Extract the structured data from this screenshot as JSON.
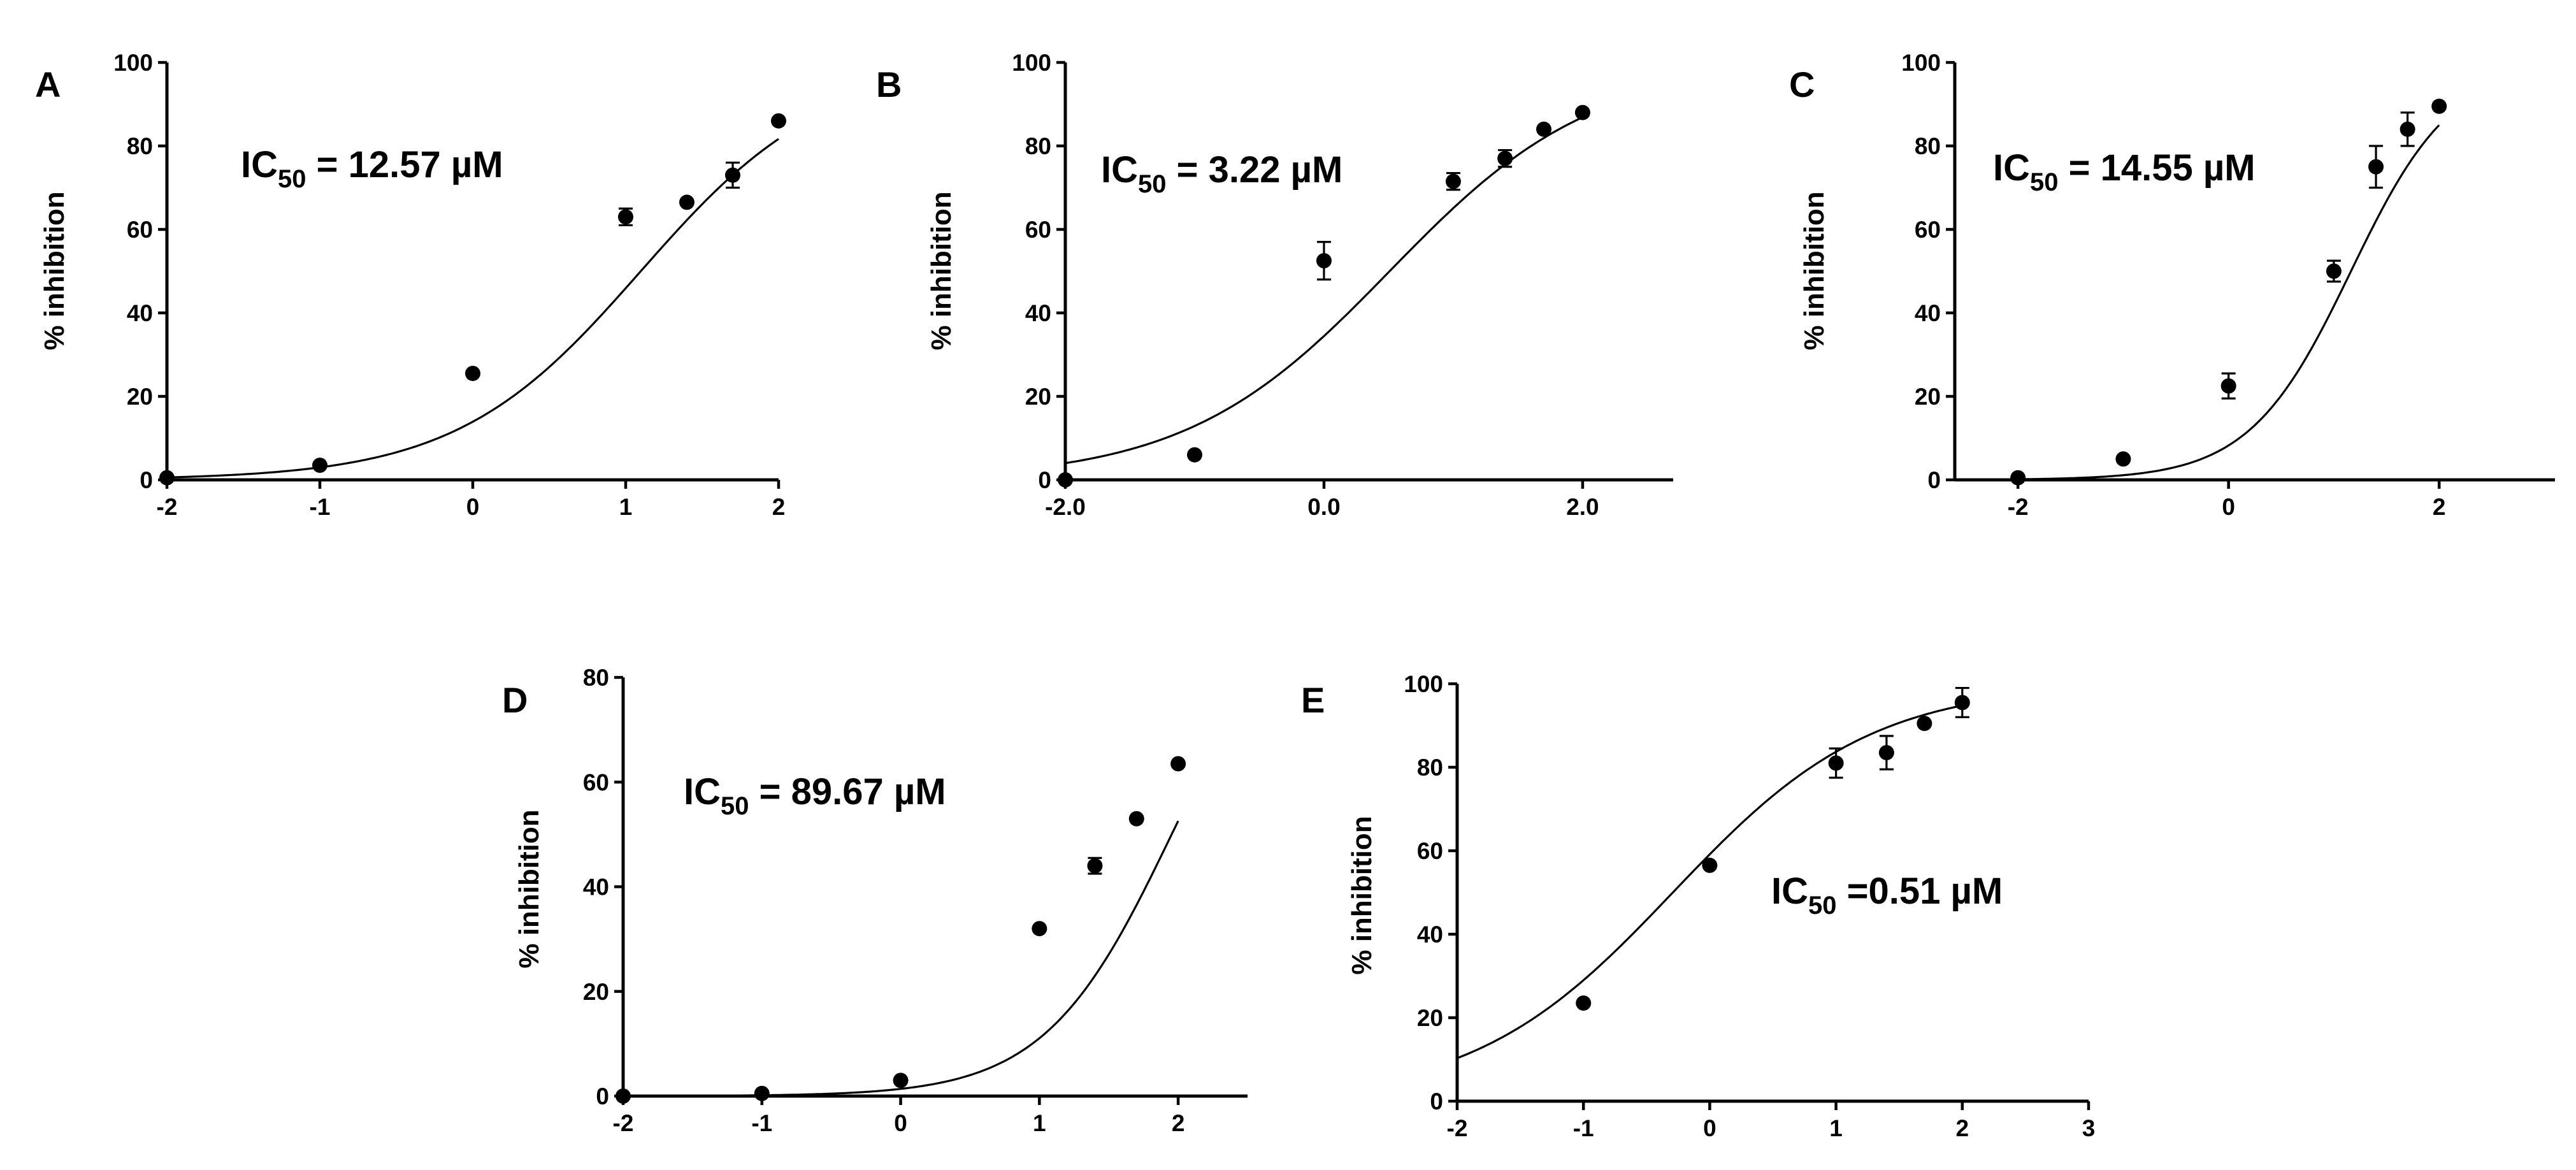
{
  "figure": {
    "panels": [
      "A",
      "B",
      "C",
      "D",
      "E"
    ]
  },
  "chart_data": [
    {
      "panel": "A",
      "type": "scatter",
      "title": "",
      "annotation": {
        "prefix": "IC",
        "sub": "50",
        "suffix": " = 12.57 µM"
      },
      "xlabel": "",
      "ylabel": "% inhibition",
      "xlim": [
        -2,
        2
      ],
      "ylim": [
        0,
        100
      ],
      "xticks": [
        -2,
        -1,
        0,
        1,
        2
      ],
      "xtick_labels": [
        "-2",
        "-1",
        "0",
        "1",
        "2"
      ],
      "yticks": [
        0,
        20,
        40,
        60,
        80,
        100
      ],
      "ytick_labels": [
        "0",
        "20",
        "40",
        "60",
        "80",
        "100"
      ],
      "points": [
        {
          "x": -2,
          "y": 0.5,
          "err": 0
        },
        {
          "x": -1,
          "y": 3.5,
          "err": 0
        },
        {
          "x": 0,
          "y": 25.5,
          "err": 0
        },
        {
          "x": 1,
          "y": 63,
          "err": 2
        },
        {
          "x": 1.4,
          "y": 66.5,
          "err": 0
        },
        {
          "x": 1.7,
          "y": 73,
          "err": 3
        },
        {
          "x": 2,
          "y": 86,
          "err": 0
        }
      ],
      "fit": {
        "model": "logistic",
        "bottom": 0,
        "top": 100,
        "logIC50": 1.099,
        "hill": 0.72
      }
    },
    {
      "panel": "B",
      "type": "scatter",
      "title": "",
      "annotation": {
        "prefix": "IC",
        "sub": "50",
        "suffix": " = 3.22 µM"
      },
      "xlabel": "",
      "ylabel": "% inhibition",
      "xlim": [
        -2,
        2.7
      ],
      "ylim": [
        0,
        100
      ],
      "xticks": [
        -2,
        0,
        2
      ],
      "xtick_labels": [
        "-2.0",
        "0.0",
        "2.0"
      ],
      "yticks": [
        0,
        20,
        40,
        60,
        80,
        100
      ],
      "ytick_labels": [
        "0",
        "20",
        "40",
        "60",
        "80",
        "100"
      ],
      "points": [
        {
          "x": -2,
          "y": 0,
          "err": 0
        },
        {
          "x": -1,
          "y": 6,
          "err": 0
        },
        {
          "x": 0,
          "y": 52.5,
          "err": 4.5
        },
        {
          "x": 1,
          "y": 71.5,
          "err": 2
        },
        {
          "x": 1.4,
          "y": 77,
          "err": 2
        },
        {
          "x": 1.7,
          "y": 84,
          "err": 0
        },
        {
          "x": 2,
          "y": 88,
          "err": 0
        }
      ],
      "fit": {
        "model": "logistic",
        "bottom": 0,
        "top": 100,
        "logIC50": 0.508,
        "hill": 0.55
      }
    },
    {
      "panel": "C",
      "type": "scatter",
      "title": "",
      "annotation": {
        "prefix": "IC",
        "sub": "50",
        "suffix": " = 14.55 µM"
      },
      "xlabel": "",
      "ylabel": "% inhibition",
      "xlim": [
        -2.6,
        3.1
      ],
      "ylim": [
        0,
        100
      ],
      "xticks": [
        -2,
        0,
        2
      ],
      "xtick_labels": [
        "-2",
        "0",
        "2"
      ],
      "yticks": [
        0,
        20,
        40,
        60,
        80,
        100
      ],
      "ytick_labels": [
        "0",
        "20",
        "40",
        "60",
        "80",
        "100"
      ],
      "points": [
        {
          "x": -2,
          "y": 0.5,
          "err": 0
        },
        {
          "x": -1,
          "y": 5,
          "err": 0
        },
        {
          "x": 0,
          "y": 22.5,
          "err": 3
        },
        {
          "x": 1,
          "y": 50,
          "err": 2.5
        },
        {
          "x": 1.4,
          "y": 75,
          "err": 5
        },
        {
          "x": 1.7,
          "y": 84,
          "err": 4
        },
        {
          "x": 2,
          "y": 89.5,
          "err": 0
        }
      ],
      "fit": {
        "model": "logistic",
        "bottom": 0,
        "top": 100,
        "logIC50": 1.163,
        "hill": 0.9
      }
    },
    {
      "panel": "D",
      "type": "scatter",
      "title": "",
      "annotation": {
        "prefix": "IC",
        "sub": "50",
        "suffix": " = 89.67 µM"
      },
      "xlabel": "",
      "ylabel": "% inhibition",
      "xlim": [
        -2,
        2.5
      ],
      "ylim": [
        0,
        80
      ],
      "xticks": [
        -2,
        -1,
        0,
        1,
        2
      ],
      "xtick_labels": [
        "-2",
        "-1",
        "0",
        "1",
        "2"
      ],
      "yticks": [
        0,
        20,
        40,
        60,
        80
      ],
      "ytick_labels": [
        "0",
        "20",
        "40",
        "60",
        "80"
      ],
      "points": [
        {
          "x": -2,
          "y": 0,
          "err": 0
        },
        {
          "x": -1,
          "y": 0.5,
          "err": 0
        },
        {
          "x": 0,
          "y": 3,
          "err": 0
        },
        {
          "x": 1,
          "y": 32,
          "err": 0
        },
        {
          "x": 1.4,
          "y": 44,
          "err": 1.5
        },
        {
          "x": 1.7,
          "y": 53,
          "err": 0
        },
        {
          "x": 2,
          "y": 63.5,
          "err": 0
        }
      ],
      "fit": {
        "model": "logistic",
        "bottom": 0,
        "top": 100,
        "logIC50": 1.953,
        "hill": 0.95
      }
    },
    {
      "panel": "E",
      "type": "scatter",
      "title": "",
      "annotation": {
        "prefix": "IC",
        "sub": "50",
        "suffix": " =0.51 µM"
      },
      "xlabel": "",
      "ylabel": "% inhibition",
      "xlim": [
        -2,
        3
      ],
      "ylim": [
        0,
        100
      ],
      "xticks": [
        -2,
        -1,
        0,
        1,
        2,
        3
      ],
      "xtick_labels": [
        "-2",
        "-1",
        "0",
        "1",
        "2",
        "3"
      ],
      "yticks": [
        0,
        20,
        40,
        60,
        80,
        100
      ],
      "ytick_labels": [
        "0",
        "20",
        "40",
        "60",
        "80",
        "100"
      ],
      "points": [
        {
          "x": -1,
          "y": 23.5,
          "err": 0
        },
        {
          "x": 0,
          "y": 56.5,
          "err": 0
        },
        {
          "x": 1,
          "y": 81,
          "err": 3.5
        },
        {
          "x": 1.4,
          "y": 83.5,
          "err": 4
        },
        {
          "x": 1.7,
          "y": 90.5,
          "err": 0
        },
        {
          "x": 2,
          "y": 95.5,
          "err": 3.5
        }
      ],
      "fit": {
        "model": "logistic",
        "bottom": 0,
        "top": 100,
        "logIC50": -0.292,
        "hill": 0.55
      }
    }
  ]
}
